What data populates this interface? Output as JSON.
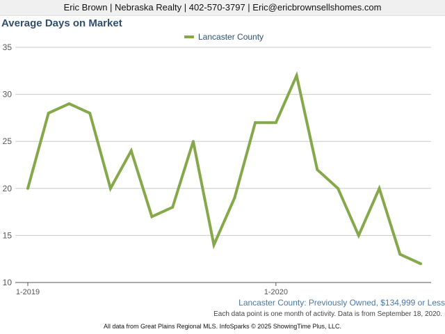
{
  "header": {
    "contact": "Eric Brown | Nebraska Realty | 402-570-3797 | Eric@ericbrownsellshomes.com"
  },
  "colors": {
    "series": "#85a94a",
    "gridline": "#c8c8c8",
    "title": "#2f4f6f",
    "subtitle": "#4a79a8"
  },
  "chart_data": {
    "type": "line",
    "title": "Average Days on Market",
    "xlabel": "",
    "ylabel": "",
    "ylim": [
      10,
      35
    ],
    "yticks": [
      10,
      15,
      20,
      25,
      30,
      35
    ],
    "x_tick_labels": [
      {
        "index": 0,
        "label": "1-2019"
      },
      {
        "index": 12,
        "label": "1-2020"
      }
    ],
    "x": [
      "1-2019",
      "2-2019",
      "3-2019",
      "4-2019",
      "5-2019",
      "6-2019",
      "7-2019",
      "8-2019",
      "9-2019",
      "10-2019",
      "11-2019",
      "12-2019",
      "1-2020",
      "2-2020",
      "3-2020",
      "4-2020",
      "5-2020",
      "6-2020",
      "7-2020",
      "8-2020"
    ],
    "series": [
      {
        "name": "Lancaster County",
        "values": [
          20,
          28,
          29,
          28,
          20,
          24,
          17,
          18,
          25,
          14,
          19,
          27,
          27,
          32,
          22,
          20,
          15,
          20,
          13,
          12
        ]
      }
    ],
    "grid": true,
    "legend": "top-center",
    "subtitle": "Lancaster County: Previously Owned, $134,999 or Less",
    "note": "Each data point is one month of activity. Data is from September 18, 2020."
  },
  "footer": {
    "text": "All data from Great Plains Regional MLS. InfoSparks © 2025 ShowingTime Plus, LLC."
  }
}
